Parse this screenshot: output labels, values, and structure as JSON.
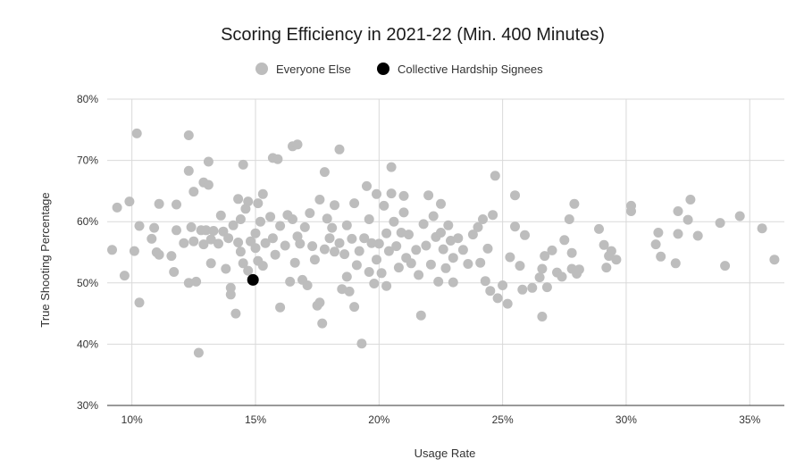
{
  "chart_data": {
    "type": "scatter",
    "title": "Scoring Efficiency in 2021-22 (Min. 400 Minutes)",
    "xlabel": "Usage Rate",
    "ylabel": "True Shooting Percentage",
    "xlim": [
      9,
      36.4
    ],
    "ylim": [
      30,
      80
    ],
    "x_ticks": [
      {
        "value": 10,
        "label": "10%"
      },
      {
        "value": 15,
        "label": "15%"
      },
      {
        "value": 20,
        "label": "20%"
      },
      {
        "value": 25,
        "label": "25%"
      },
      {
        "value": 30,
        "label": "30%"
      },
      {
        "value": 35,
        "label": "35%"
      }
    ],
    "y_ticks": [
      {
        "value": 30,
        "label": "30%"
      },
      {
        "value": 40,
        "label": "40%"
      },
      {
        "value": 50,
        "label": "50%"
      },
      {
        "value": 60,
        "label": "60%"
      },
      {
        "value": 70,
        "label": "70%"
      },
      {
        "value": 80,
        "label": "80%"
      }
    ],
    "grid": true,
    "legend_position": "top",
    "series": [
      {
        "name": "Everyone Else",
        "color": "#bdbdbd",
        "points": [
          [
            9.2,
            55.4
          ],
          [
            9.4,
            62.3
          ],
          [
            9.7,
            51.2
          ],
          [
            9.9,
            63.3
          ],
          [
            10.1,
            55.2
          ],
          [
            10.2,
            74.4
          ],
          [
            10.3,
            59.3
          ],
          [
            10.3,
            46.8
          ],
          [
            10.8,
            57.2
          ],
          [
            10.9,
            59.0
          ],
          [
            11.0,
            55.0
          ],
          [
            11.1,
            54.6
          ],
          [
            11.1,
            62.9
          ],
          [
            11.6,
            54.4
          ],
          [
            11.7,
            51.8
          ],
          [
            11.8,
            58.6
          ],
          [
            11.8,
            62.8
          ],
          [
            12.1,
            56.5
          ],
          [
            12.3,
            68.3
          ],
          [
            12.3,
            74.1
          ],
          [
            12.3,
            50.0
          ],
          [
            12.4,
            59.1
          ],
          [
            12.5,
            64.9
          ],
          [
            12.5,
            56.8
          ],
          [
            12.6,
            50.2
          ],
          [
            12.7,
            38.6
          ],
          [
            12.8,
            58.6
          ],
          [
            12.9,
            66.4
          ],
          [
            12.9,
            56.3
          ],
          [
            13.0,
            58.6
          ],
          [
            13.1,
            69.8
          ],
          [
            13.1,
            66.0
          ],
          [
            13.2,
            57.1
          ],
          [
            13.2,
            53.2
          ],
          [
            13.3,
            58.5
          ],
          [
            13.5,
            56.4
          ],
          [
            13.6,
            61.0
          ],
          [
            13.7,
            58.4
          ],
          [
            13.8,
            52.3
          ],
          [
            13.9,
            57.3
          ],
          [
            14.0,
            49.2
          ],
          [
            14.0,
            48.1
          ],
          [
            14.1,
            59.4
          ],
          [
            14.2,
            45.0
          ],
          [
            14.3,
            63.7
          ],
          [
            14.3,
            56.6
          ],
          [
            14.4,
            60.4
          ],
          [
            14.4,
            55.1
          ],
          [
            14.5,
            69.3
          ],
          [
            14.5,
            53.2
          ],
          [
            14.6,
            62.1
          ],
          [
            14.7,
            63.3
          ],
          [
            14.7,
            52.0
          ],
          [
            14.8,
            56.8
          ],
          [
            15.0,
            55.7
          ],
          [
            15.0,
            58.1
          ],
          [
            15.1,
            63.0
          ],
          [
            15.1,
            53.6
          ],
          [
            15.2,
            60.0
          ],
          [
            15.3,
            64.5
          ],
          [
            15.3,
            52.8
          ],
          [
            15.4,
            56.5
          ],
          [
            15.6,
            60.8
          ],
          [
            15.7,
            70.4
          ],
          [
            15.7,
            57.3
          ],
          [
            15.8,
            54.6
          ],
          [
            15.9,
            70.2
          ],
          [
            16.0,
            46.0
          ],
          [
            16.0,
            59.3
          ],
          [
            16.2,
            56.1
          ],
          [
            16.3,
            61.1
          ],
          [
            16.4,
            50.2
          ],
          [
            16.5,
            72.3
          ],
          [
            16.5,
            60.4
          ],
          [
            16.6,
            53.3
          ],
          [
            16.7,
            72.6
          ],
          [
            16.7,
            57.6
          ],
          [
            16.8,
            56.4
          ],
          [
            16.9,
            50.5
          ],
          [
            17.0,
            59.1
          ],
          [
            17.1,
            49.6
          ],
          [
            17.2,
            61.4
          ],
          [
            17.3,
            56.0
          ],
          [
            17.4,
            53.8
          ],
          [
            17.5,
            46.3
          ],
          [
            17.6,
            63.6
          ],
          [
            17.6,
            46.8
          ],
          [
            17.7,
            43.4
          ],
          [
            17.8,
            55.5
          ],
          [
            17.8,
            68.1
          ],
          [
            17.9,
            60.5
          ],
          [
            18.0,
            57.3
          ],
          [
            18.1,
            59.0
          ],
          [
            18.2,
            62.7
          ],
          [
            18.2,
            55.1
          ],
          [
            18.4,
            71.8
          ],
          [
            18.4,
            56.5
          ],
          [
            18.5,
            49.0
          ],
          [
            18.6,
            54.7
          ],
          [
            18.7,
            59.4
          ],
          [
            18.7,
            51.0
          ],
          [
            18.8,
            48.6
          ],
          [
            18.9,
            57.2
          ],
          [
            19.0,
            63.0
          ],
          [
            19.0,
            46.1
          ],
          [
            19.1,
            52.9
          ],
          [
            19.2,
            55.2
          ],
          [
            19.3,
            40.1
          ],
          [
            19.4,
            57.3
          ],
          [
            19.5,
            65.8
          ],
          [
            19.6,
            60.4
          ],
          [
            19.6,
            51.8
          ],
          [
            19.7,
            56.5
          ],
          [
            19.8,
            49.9
          ],
          [
            19.9,
            64.5
          ],
          [
            19.9,
            53.8
          ],
          [
            20.0,
            56.4
          ],
          [
            20.1,
            51.6
          ],
          [
            20.2,
            62.6
          ],
          [
            20.3,
            58.1
          ],
          [
            20.3,
            49.5
          ],
          [
            20.4,
            55.2
          ],
          [
            20.5,
            68.9
          ],
          [
            20.5,
            64.6
          ],
          [
            20.6,
            60.0
          ],
          [
            20.7,
            56.0
          ],
          [
            20.8,
            52.5
          ],
          [
            20.9,
            58.2
          ],
          [
            21.0,
            61.5
          ],
          [
            21.0,
            64.2
          ],
          [
            21.1,
            54.1
          ],
          [
            21.2,
            57.9
          ],
          [
            21.3,
            53.2
          ],
          [
            21.5,
            55.4
          ],
          [
            21.6,
            51.3
          ],
          [
            21.7,
            44.7
          ],
          [
            21.8,
            59.6
          ],
          [
            21.9,
            56.1
          ],
          [
            22.0,
            64.3
          ],
          [
            22.1,
            53.0
          ],
          [
            22.2,
            60.9
          ],
          [
            22.3,
            57.5
          ],
          [
            22.4,
            50.2
          ],
          [
            22.5,
            58.2
          ],
          [
            22.5,
            62.9
          ],
          [
            22.6,
            55.5
          ],
          [
            22.7,
            52.4
          ],
          [
            22.8,
            59.4
          ],
          [
            22.9,
            56.9
          ],
          [
            23.0,
            54.1
          ],
          [
            23.0,
            50.1
          ],
          [
            23.2,
            57.3
          ],
          [
            23.4,
            55.4
          ],
          [
            23.6,
            53.1
          ],
          [
            23.8,
            57.9
          ],
          [
            24.0,
            59.1
          ],
          [
            24.1,
            53.3
          ],
          [
            24.2,
            60.4
          ],
          [
            24.3,
            50.3
          ],
          [
            24.4,
            55.6
          ],
          [
            24.5,
            48.7
          ],
          [
            24.6,
            61.1
          ],
          [
            24.7,
            67.5
          ],
          [
            24.8,
            47.5
          ],
          [
            25.0,
            49.6
          ],
          [
            25.2,
            46.6
          ],
          [
            25.3,
            54.2
          ],
          [
            25.5,
            64.3
          ],
          [
            25.5,
            59.2
          ],
          [
            25.7,
            52.8
          ],
          [
            25.8,
            48.9
          ],
          [
            25.9,
            57.8
          ],
          [
            26.2,
            49.2
          ],
          [
            26.5,
            50.9
          ],
          [
            26.6,
            44.5
          ],
          [
            26.6,
            52.3
          ],
          [
            26.7,
            54.4
          ],
          [
            26.8,
            49.3
          ],
          [
            27.0,
            55.3
          ],
          [
            27.2,
            51.7
          ],
          [
            27.4,
            51.0
          ],
          [
            27.5,
            57.0
          ],
          [
            27.7,
            60.4
          ],
          [
            27.8,
            52.3
          ],
          [
            27.8,
            54.9
          ],
          [
            27.9,
            62.9
          ],
          [
            28.0,
            51.5
          ],
          [
            28.1,
            52.2
          ],
          [
            28.9,
            58.8
          ],
          [
            29.1,
            56.2
          ],
          [
            29.2,
            52.5
          ],
          [
            29.3,
            54.4
          ],
          [
            29.4,
            55.2
          ],
          [
            29.6,
            53.8
          ],
          [
            30.2,
            62.6
          ],
          [
            30.2,
            61.7
          ],
          [
            31.2,
            56.3
          ],
          [
            31.3,
            58.2
          ],
          [
            31.4,
            54.3
          ],
          [
            32.0,
            53.2
          ],
          [
            32.1,
            61.7
          ],
          [
            32.1,
            58.0
          ],
          [
            32.5,
            60.3
          ],
          [
            32.6,
            63.6
          ],
          [
            32.9,
            57.7
          ],
          [
            33.8,
            59.8
          ],
          [
            34.0,
            52.8
          ],
          [
            34.6,
            60.9
          ],
          [
            35.5,
            58.9
          ],
          [
            36.0,
            53.8
          ]
        ]
      },
      {
        "name": "Collective Hardship Signees",
        "color": "#000000",
        "points": [
          [
            14.9,
            50.5
          ]
        ]
      }
    ]
  }
}
